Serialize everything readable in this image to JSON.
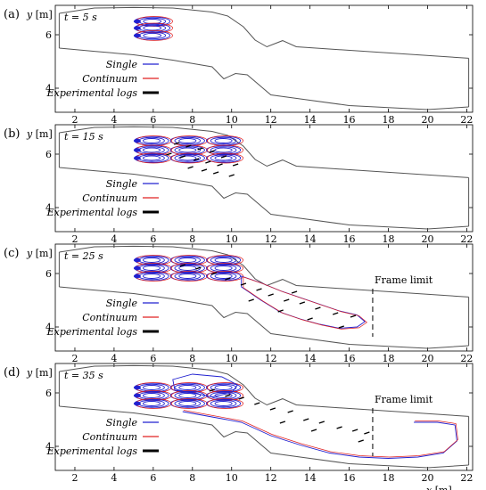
{
  "chart_data": [
    {
      "type": "contour",
      "panel_label": "(a)",
      "time_label": "t = 5 s",
      "frame_limit": null,
      "ylabel": "y [m]",
      "xlabel": "",
      "xlim": [
        1,
        22.3
      ],
      "ylim": [
        3.1,
        7.1
      ],
      "xticks": [
        "2",
        "4",
        "6",
        "8",
        "10",
        "12",
        "14",
        "16",
        "18",
        "20",
        "22"
      ],
      "yticks": [
        "4",
        "6"
      ],
      "legend": [
        {
          "name": "Single",
          "color": "#2020d0"
        },
        {
          "name": "Continuum",
          "color": "#e02020"
        },
        {
          "name": "Experimental logs",
          "color": "#000000"
        }
      ],
      "crowd_rows_y": [
        6.5,
        6.25,
        5.97
      ],
      "crowd_front_x": 6.9,
      "logs": []
    },
    {
      "type": "contour",
      "panel_label": "(b)",
      "time_label": "t = 15 s",
      "frame_limit": null,
      "ylabel": "y [m]",
      "xlabel": "",
      "xlim": [
        1,
        22.3
      ],
      "ylim": [
        3.1,
        7.1
      ],
      "xticks": [
        "2",
        "4",
        "6",
        "8",
        "10",
        "12",
        "14",
        "16",
        "18",
        "20",
        "22"
      ],
      "yticks": [
        "4",
        "6"
      ],
      "legend": [
        {
          "name": "Single",
          "color": "#2020d0"
        },
        {
          "name": "Continuum",
          "color": "#e02020"
        },
        {
          "name": "Experimental logs",
          "color": "#000000"
        }
      ],
      "crowd_rows_y": [
        6.5,
        6.15,
        5.85
      ],
      "crowd_front_x": 11.5,
      "logs": [
        [
          7.2,
          6.4
        ],
        [
          7.8,
          6.3
        ],
        [
          8.4,
          6.2
        ],
        [
          9.0,
          6.1
        ],
        [
          9.6,
          5.9
        ],
        [
          7.5,
          5.9
        ],
        [
          8.2,
          5.8
        ],
        [
          8.8,
          5.7
        ],
        [
          9.4,
          5.6
        ],
        [
          10.2,
          5.6
        ],
        [
          6.8,
          6.0
        ],
        [
          7.9,
          5.5
        ],
        [
          8.6,
          5.4
        ],
        [
          9.2,
          5.3
        ],
        [
          10.0,
          5.2
        ]
      ]
    },
    {
      "type": "contour",
      "panel_label": "(c)",
      "time_label": "t = 25 s",
      "frame_limit": "Frame limit",
      "frame_limit_x": 17.2,
      "ylabel": "y [m]",
      "xlabel": "",
      "xlim": [
        1,
        22.3
      ],
      "ylim": [
        3.1,
        7.1
      ],
      "xticks": [
        "2",
        "4",
        "6",
        "8",
        "10",
        "12",
        "14",
        "16",
        "18",
        "20",
        "22"
      ],
      "yticks": [
        "4",
        "6"
      ],
      "legend": [
        {
          "name": "Single",
          "color": "#2020d0"
        },
        {
          "name": "Continuum",
          "color": "#e02020"
        },
        {
          "name": "Experimental logs",
          "color": "#000000"
        }
      ],
      "crowd_rows_y": [
        6.5,
        6.2,
        5.9
      ],
      "crowd_front_x": 16.8,
      "logs": [
        [
          7.5,
          6.3
        ],
        [
          8.3,
          6.2
        ],
        [
          9.1,
          6.0
        ],
        [
          9.8,
          5.8
        ],
        [
          10.6,
          5.6
        ],
        [
          11.4,
          5.4
        ],
        [
          12.0,
          5.2
        ],
        [
          12.8,
          5.0
        ],
        [
          13.6,
          4.9
        ],
        [
          14.4,
          4.7
        ],
        [
          15.3,
          4.5
        ],
        [
          16.2,
          4.4
        ],
        [
          12.5,
          4.6
        ],
        [
          14.0,
          4.3
        ],
        [
          15.6,
          4.0
        ],
        [
          11.0,
          5.0
        ],
        [
          13.2,
          5.3
        ]
      ]
    },
    {
      "type": "contour",
      "panel_label": "(d)",
      "time_label": "t = 35 s",
      "frame_limit": "Frame limit",
      "frame_limit_x": 17.2,
      "ylabel": "y [m]",
      "xlabel": "x [m]",
      "xlim": [
        1,
        22.3
      ],
      "ylim": [
        3.1,
        7.1
      ],
      "xticks": [
        "2",
        "4",
        "6",
        "8",
        "10",
        "12",
        "14",
        "16",
        "18",
        "20",
        "22"
      ],
      "yticks": [
        "4",
        "6"
      ],
      "legend": [
        {
          "name": "Single",
          "color": "#2020d0"
        },
        {
          "name": "Continuum",
          "color": "#e02020"
        },
        {
          "name": "Experimental logs",
          "color": "#000000"
        }
      ],
      "crowd_rows_y": [
        6.2,
        5.9,
        5.6
      ],
      "crowd_front_x": 21.5,
      "logs": [
        [
          9.0,
          6.1
        ],
        [
          9.8,
          5.9
        ],
        [
          10.5,
          5.8
        ],
        [
          11.3,
          5.6
        ],
        [
          12.1,
          5.4
        ],
        [
          13.0,
          5.3
        ],
        [
          13.8,
          5.0
        ],
        [
          14.6,
          4.9
        ],
        [
          15.5,
          4.7
        ],
        [
          16.3,
          4.6
        ],
        [
          16.9,
          4.5
        ],
        [
          12.6,
          4.9
        ],
        [
          14.2,
          4.6
        ],
        [
          16.6,
          4.2
        ]
      ]
    }
  ]
}
